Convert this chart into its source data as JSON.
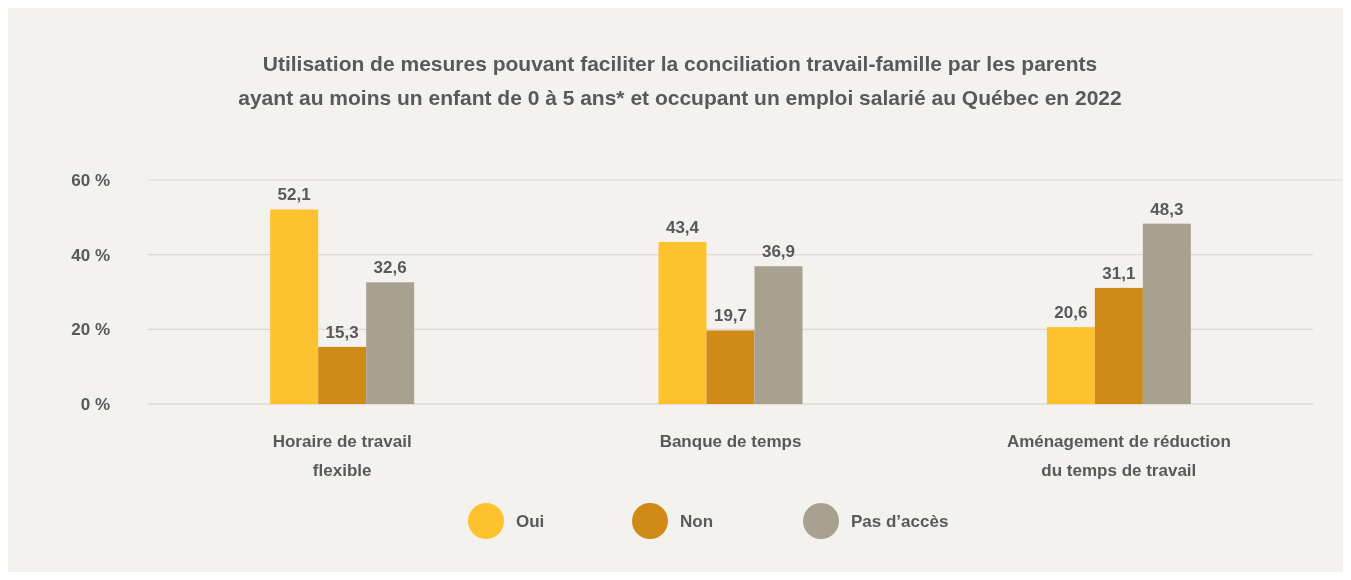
{
  "chart_data": {
    "type": "bar",
    "title": "Utilisation de mesures pouvant faciliter la conciliation travail-famille par les parents\nayant au moins un enfant de 0 à 5 ans* et occupant un emploi salarié au Québec en 2022",
    "categories": [
      "Horaire de travail flexible",
      "Banque de temps",
      "Aménagement de réduction du temps de travail"
    ],
    "series": [
      {
        "name": "Oui",
        "color": "#fdc22e",
        "values": [
          52.1,
          43.4,
          20.6
        ],
        "value_labels": [
          "52,1",
          "43,4",
          "20,6"
        ]
      },
      {
        "name": "Non",
        "color": "#d08a18",
        "values": [
          15.3,
          19.7,
          31.1
        ],
        "value_labels": [
          "15,3",
          "19,7",
          "31,1"
        ]
      },
      {
        "name": "Pas d’accès",
        "color": "#a8a190",
        "values": [
          32.6,
          36.9,
          48.3
        ],
        "value_labels": [
          "32,6",
          "36,9",
          "48,3"
        ]
      }
    ],
    "ylim": [
      0,
      60
    ],
    "yticks": [
      {
        "value": 0,
        "label": "0 %"
      },
      {
        "value": 20,
        "label": "20 %"
      },
      {
        "value": 40,
        "label": "40 %"
      },
      {
        "value": 60,
        "label": "60 %"
      }
    ],
    "grid": "y",
    "legend": "bottom"
  }
}
